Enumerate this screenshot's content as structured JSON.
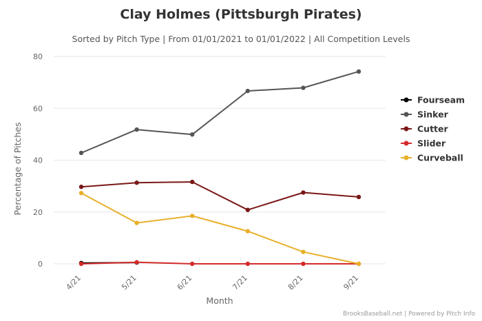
{
  "chart_data": {
    "type": "line",
    "title": "Clay Holmes (Pittsburgh Pirates)",
    "subtitle": "Sorted by Pitch Type | From 01/01/2021 to 01/01/2022 | All Competition Levels",
    "xlabel": "Month",
    "ylabel": "Percentage of Pitches",
    "categories": [
      "4/21",
      "5/21",
      "6/21",
      "7/21",
      "8/21",
      "9/21"
    ],
    "ylim": [
      0,
      80
    ],
    "yticks": [
      "0",
      "20",
      "40",
      "60",
      "80"
    ],
    "grid": true,
    "legend_position": "right",
    "series": [
      {
        "name": "Fourseam",
        "color": "#000000",
        "values": [
          0.3,
          0.5,
          null,
          null,
          null,
          null
        ]
      },
      {
        "name": "Sinker",
        "color": "#555555",
        "values": [
          42.8,
          51.8,
          49.9,
          66.7,
          67.9,
          74.2
        ]
      },
      {
        "name": "Cutter",
        "color": "#7a1717",
        "values": [
          29.7,
          31.3,
          31.6,
          20.8,
          27.5,
          25.8
        ]
      },
      {
        "name": "Slider",
        "color": "#d42a2a",
        "values": [
          0.0,
          0.6,
          0.0,
          0.0,
          0.0,
          0.0
        ]
      },
      {
        "name": "Curveball",
        "color": "#e8b02a",
        "values": [
          27.3,
          15.8,
          18.5,
          12.6,
          4.6,
          0.0
        ]
      }
    ],
    "credit": "BrooksBaseball.net | Powered by Pitch Info"
  }
}
